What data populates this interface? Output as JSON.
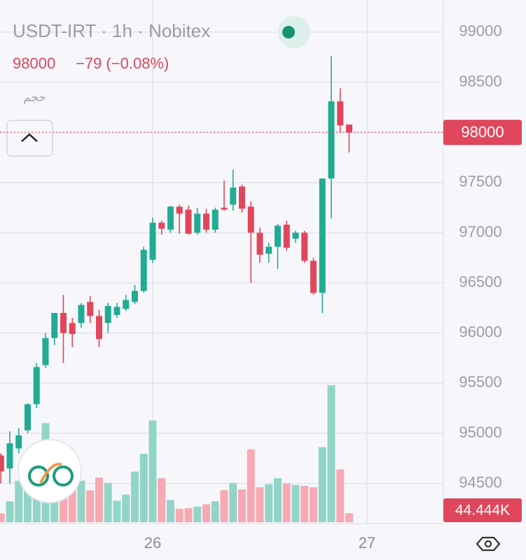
{
  "chart_data": {
    "type": "candlestick",
    "title": "USDT-IRT · 1h · Nobitex",
    "last_price": 98000,
    "change_label": "−79 (−0.08%)",
    "volume_title": "حجم",
    "x": [
      25.2917,
      25.3333,
      25.375,
      25.4167,
      25.4583,
      25.5,
      25.5417,
      25.5833,
      25.625,
      25.6667,
      25.7083,
      25.75,
      25.7917,
      25.8333,
      25.875,
      25.9167,
      25.9583,
      26,
      26.0417,
      26.0833,
      26.125,
      26.1667,
      26.2083,
      26.25,
      26.2917,
      26.3333,
      26.375,
      26.4167,
      26.4583,
      26.5,
      26.5417,
      26.5833,
      26.625,
      26.6667,
      26.7083,
      26.75,
      26.7917,
      26.8333,
      26.875,
      26.9167
    ],
    "open": [
      94780,
      94650,
      94850,
      95030,
      95290,
      95680,
      95950,
      96200,
      96100,
      96100,
      96310,
      96170,
      96100,
      96180,
      96240,
      96310,
      96420,
      96730,
      97100,
      97030,
      97260,
      97230,
      97000,
      97190,
      97030,
      97250,
      97280,
      97460,
      97260,
      97000,
      96790,
      96860,
      97080,
      96940,
      97000,
      96720,
      96400,
      97540,
      98310,
      98079
    ],
    "high": [
      94800,
      95020,
      95050,
      95300,
      95700,
      96000,
      96200,
      96380,
      96150,
      96300,
      96370,
      96230,
      96300,
      96300,
      96380,
      96480,
      96860,
      97150,
      97120,
      97270,
      97280,
      97270,
      97250,
      97240,
      97250,
      97520,
      97630,
      97480,
      97310,
      97050,
      96900,
      97090,
      97120,
      97020,
      97020,
      96750,
      97540,
      98760,
      98440,
      98079
    ],
    "low": [
      94500,
      94500,
      94800,
      95000,
      95250,
      95650,
      95880,
      95700,
      95860,
      96050,
      96100,
      95860,
      96000,
      96150,
      96220,
      96290,
      96400,
      96700,
      96980,
      97000,
      96990,
      96980,
      96980,
      97000,
      97000,
      97220,
      97220,
      97200,
      96500,
      96700,
      96700,
      96640,
      96820,
      96900,
      96700,
      96380,
      96200,
      97140,
      98000,
      97800
    ],
    "close": [
      94620,
      94900,
      94980,
      95290,
      95660,
      95950,
      96200,
      96000,
      95990,
      96280,
      96170,
      95940,
      96270,
      96260,
      96330,
      96420,
      96830,
      97100,
      97040,
      97260,
      97190,
      96990,
      97190,
      97030,
      97230,
      97230,
      97450,
      97240,
      97000,
      96780,
      96860,
      97070,
      96850,
      97000,
      96720,
      96400,
      97540,
      98310,
      98070,
      98000
    ],
    "volume": {
      "values": [
        44000,
        104000,
        207000,
        348000,
        393000,
        493000,
        337000,
        207000,
        170000,
        207000,
        159000,
        222000,
        196000,
        107000,
        137000,
        252000,
        341000,
        507000,
        219000,
        111000,
        67000,
        70000,
        78000,
        89000,
        104000,
        159000,
        196000,
        163000,
        363000,
        174000,
        189000,
        219000,
        193000,
        185000,
        181000,
        174000,
        374000,
        682000,
        263000,
        44444
      ],
      "value_labels": [
        null,
        null,
        null,
        null,
        null,
        null,
        null,
        null,
        null,
        null,
        null,
        null,
        null,
        null,
        null,
        null,
        null,
        null,
        null,
        null,
        null,
        null,
        null,
        null,
        null,
        null,
        null,
        null,
        null,
        null,
        null,
        null,
        null,
        null,
        null,
        null,
        null,
        null,
        null,
        "44.444K"
      ],
      "ylim": [
        0,
        2600000
      ]
    },
    "up_color": "#22ab94",
    "down_color": "#e0475c",
    "volume_up_color": "#92d5c8",
    "volume_down_color": "#f6a9b3",
    "xlim": [
      25.2876,
      27.3562
    ],
    "xticks": [
      26,
      27
    ],
    "ylim": [
      94100,
      99320
    ],
    "yticks": [
      94500,
      95000,
      95500,
      96000,
      96500,
      97000,
      97500,
      98000,
      98500,
      99000
    ],
    "grid": true
  }
}
